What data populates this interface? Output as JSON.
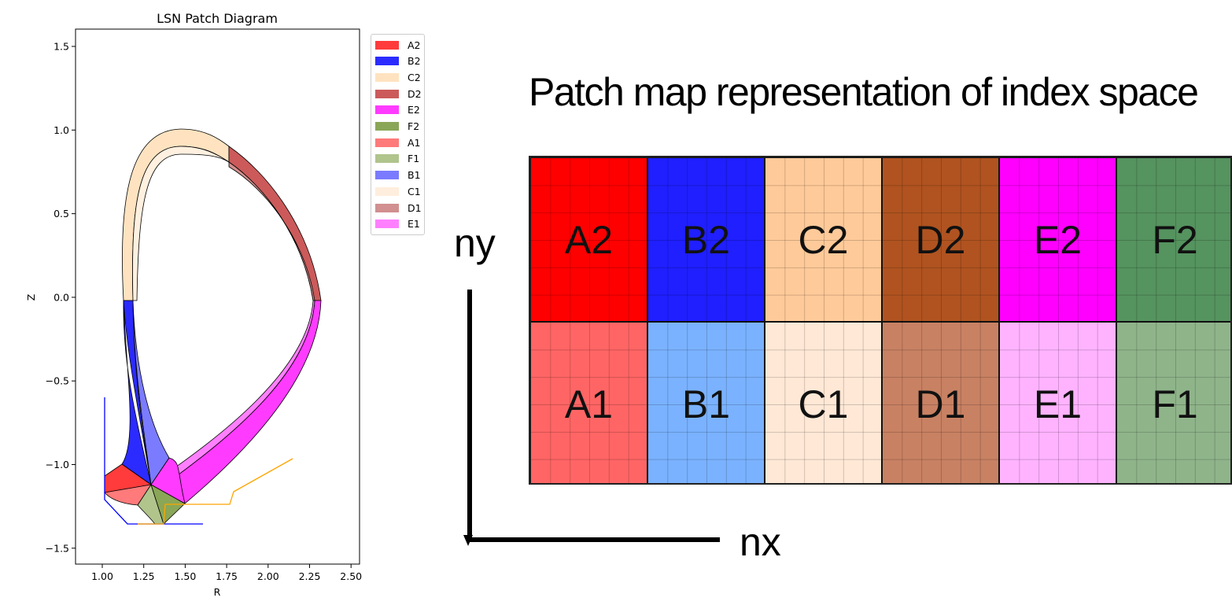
{
  "plot": {
    "title": "LSN Patch Diagram",
    "xlabel": "R",
    "ylabel": "Z",
    "x_ticks": [
      "1.00",
      "1.25",
      "1.50",
      "1.75",
      "2.00",
      "2.25",
      "2.50"
    ],
    "y_ticks": [
      "1.5",
      "1.0",
      "0.5",
      "0.0",
      "−0.5",
      "−1.0",
      "−1.5"
    ]
  },
  "legend": [
    {
      "label": "A2",
      "color": "#ff3b3b"
    },
    {
      "label": "B2",
      "color": "#2b2bff"
    },
    {
      "label": "C2",
      "color": "#ffe3c0"
    },
    {
      "label": "D2",
      "color": "#cc5a5a"
    },
    {
      "label": "E2",
      "color": "#ff3bff"
    },
    {
      "label": "F2",
      "color": "#8aa657"
    },
    {
      "label": "A1",
      "color": "#ff7a7a"
    },
    {
      "label": "F1",
      "color": "#b0c48c"
    },
    {
      "label": "B1",
      "color": "#7b7bff"
    },
    {
      "label": "C1",
      "color": "#ffeedd"
    },
    {
      "label": "D1",
      "color": "#d28f8f"
    },
    {
      "label": "E1",
      "color": "#ff80ff"
    }
  ],
  "patch_map": {
    "title": "Patch map representation of index space",
    "ny_label": "ny",
    "nx_label": "nx",
    "top_row": [
      {
        "label": "A2",
        "color": "#ff0000"
      },
      {
        "label": "B2",
        "color": "#1f1fff"
      },
      {
        "label": "C2",
        "color": "#ffca99"
      },
      {
        "label": "D2",
        "color": "#b05320"
      },
      {
        "label": "E2",
        "color": "#ff00ff"
      },
      {
        "label": "F2",
        "color": "#55935f"
      }
    ],
    "bottom_row": [
      {
        "label": "A1",
        "color": "#ff6565"
      },
      {
        "label": "B1",
        "color": "#7ab2ff"
      },
      {
        "label": "C1",
        "color": "#ffe8d6"
      },
      {
        "label": "D1",
        "color": "#c88163"
      },
      {
        "label": "E1",
        "color": "#ffb3ff"
      },
      {
        "label": "F1",
        "color": "#8fb48a"
      }
    ]
  }
}
